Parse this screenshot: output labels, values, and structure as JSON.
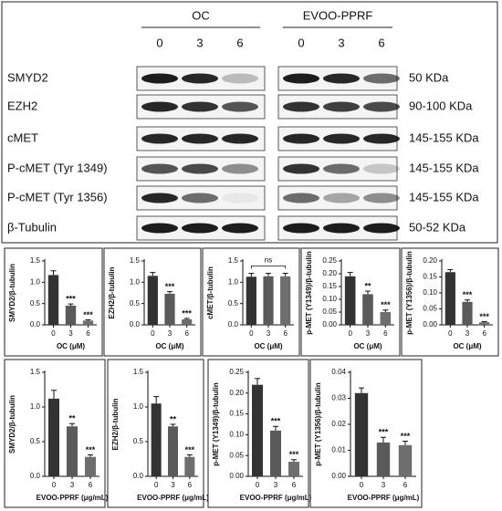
{
  "blot": {
    "groups": [
      {
        "name": "OC",
        "lanes": [
          "0",
          "3",
          "6"
        ]
      },
      {
        "name": "EVOO-PPRF",
        "lanes": [
          "0",
          "3",
          "6"
        ]
      }
    ],
    "rows": [
      {
        "protein": "SMYD2",
        "size": "50 KDa"
      },
      {
        "protein": "EZH2",
        "size": "90-100 KDa"
      },
      {
        "protein": "cMET",
        "size": "145-155 KDa"
      },
      {
        "protein": "P-cMET (Tyr 1349)",
        "size": "145-155 KDa"
      },
      {
        "protein": "P-cMET (Tyr 1356)",
        "size": "145-155 KDa"
      },
      {
        "protein": "β-Tubulin",
        "size": "50-52 KDa"
      }
    ]
  },
  "chart_data": [
    {
      "type": "bar",
      "y_label": "SMYD2/β-tubulin",
      "x_label": "OC (μM)",
      "categories": [
        "0",
        "3",
        "6"
      ],
      "values": [
        1.17,
        0.45,
        0.1
      ],
      "errors": [
        0.1,
        0.04,
        0.02
      ],
      "colors": [
        "#333333",
        "#5a5a5a",
        "#6e6e6e"
      ],
      "significance": [
        null,
        "***",
        "***"
      ],
      "ylim": [
        0,
        1.5
      ],
      "yticks": [
        {
          "value": 0,
          "label": "0.0"
        },
        0.5,
        {
          "value": 1,
          "label": "1.0"
        },
        1.5
      ]
    },
    {
      "type": "bar",
      "y_label": "EZH2/β-tubulin",
      "x_label": "OC (μM)",
      "categories": [
        "0",
        "3",
        "6"
      ],
      "values": [
        1.15,
        0.73,
        0.13
      ],
      "errors": [
        0.08,
        0.05,
        0.02
      ],
      "colors": [
        "#333333",
        "#5a5a5a",
        "#6e6e6e"
      ],
      "significance": [
        null,
        "***",
        "***"
      ],
      "ylim": [
        0,
        1.5
      ],
      "yticks": [
        {
          "value": 0,
          "label": "0.0"
        },
        0.5,
        {
          "value": 1,
          "label": "1.0"
        },
        1.5
      ]
    },
    {
      "type": "bar",
      "y_label": "cMET/β-tubulin",
      "x_label": "OC (μM)",
      "categories": [
        "0",
        "3",
        "6"
      ],
      "values": [
        1.13,
        1.14,
        1.14
      ],
      "errors": [
        0.08,
        0.07,
        0.07
      ],
      "colors": [
        "#333333",
        "#5a5a5a",
        "#6e6e6e"
      ],
      "annotation": "ns",
      "ylim": [
        0,
        1.5
      ],
      "yticks": [
        {
          "value": 0,
          "label": "0.0"
        },
        0.5,
        {
          "value": 1,
          "label": "1.0"
        },
        1.5
      ]
    },
    {
      "type": "bar",
      "y_label": "p-MET (Y1349)/β-tubulin",
      "x_label": "OC (μM)",
      "categories": [
        "0",
        "3",
        "6"
      ],
      "values": [
        0.19,
        0.12,
        0.05
      ],
      "errors": [
        0.015,
        0.012,
        0.008
      ],
      "colors": [
        "#333333",
        "#5a5a5a",
        "#6e6e6e"
      ],
      "significance": [
        null,
        "**",
        "***"
      ],
      "ylim": [
        0,
        0.25
      ],
      "yticks": [
        {
          "value": 0,
          "label": "0.00"
        },
        0.05,
        {
          "value": 0.1,
          "label": "0.10"
        },
        0.15,
        {
          "value": 0.2,
          "label": "0.20"
        },
        0.25
      ]
    },
    {
      "type": "bar",
      "y_label": "p-MET (Y1356)/β-tubulin",
      "x_label": "OC (μM)",
      "categories": [
        "0",
        "3",
        "6"
      ],
      "values": [
        0.165,
        0.072,
        0.008
      ],
      "errors": [
        0.008,
        0.006,
        0.002
      ],
      "colors": [
        "#333333",
        "#5a5a5a",
        "#6e6e6e"
      ],
      "significance": [
        null,
        "***",
        "***"
      ],
      "ylim": [
        0,
        0.2
      ],
      "yticks": [
        {
          "value": 0,
          "label": "0.00"
        },
        0.05,
        {
          "value": 0.1,
          "label": "0.10"
        },
        0.15,
        {
          "value": 0.2,
          "label": "0.20"
        }
      ]
    },
    {
      "type": "bar",
      "y_label": "SMYD2/β-tubulin",
      "x_label": "EVOO-PPRF (μg/mL)",
      "categories": [
        "0",
        "3",
        "6"
      ],
      "values": [
        1.12,
        0.72,
        0.28
      ],
      "errors": [
        0.12,
        0.04,
        0.03
      ],
      "colors": [
        "#333333",
        "#5a5a5a",
        "#6e6e6e"
      ],
      "significance": [
        null,
        "**",
        "***"
      ],
      "ylim": [
        0,
        1.5
      ],
      "yticks": [
        {
          "value": 0,
          "label": "0.0"
        },
        0.5,
        {
          "value": 1,
          "label": "1.0"
        },
        1.5
      ]
    },
    {
      "type": "bar",
      "y_label": "EZH2/β-tubulin",
      "x_label": "EVOO-PPRF (μg/mL)",
      "categories": [
        "0",
        "3",
        "6"
      ],
      "values": [
        1.05,
        0.72,
        0.28
      ],
      "errors": [
        0.1,
        0.03,
        0.03
      ],
      "colors": [
        "#333333",
        "#5a5a5a",
        "#6e6e6e"
      ],
      "significance": [
        null,
        "**",
        "***"
      ],
      "ylim": [
        0,
        1.5
      ],
      "yticks": [
        {
          "value": 0,
          "label": "0.0"
        },
        0.5,
        {
          "value": 1,
          "label": "1.0"
        },
        1.5
      ]
    },
    {
      "type": "bar",
      "y_label": "p-MET (Y1349)/β-tubulin",
      "x_label": "EVOO-PPRF (μg/mL)",
      "categories": [
        "0",
        "3",
        "6"
      ],
      "values": [
        0.22,
        0.11,
        0.035
      ],
      "errors": [
        0.015,
        0.01,
        0.005
      ],
      "colors": [
        "#333333",
        "#5a5a5a",
        "#6e6e6e"
      ],
      "significance": [
        null,
        "***",
        "***"
      ],
      "ylim": [
        0,
        0.25
      ],
      "yticks": [
        {
          "value": 0,
          "label": "0.00"
        },
        0.05,
        {
          "value": 0.1,
          "label": "0.10"
        },
        0.15,
        {
          "value": 0.2,
          "label": "0.20"
        },
        0.25
      ]
    },
    {
      "type": "bar",
      "y_label": "p-MET (Y1356)/β-tubulin",
      "x_label": "EVOO-PPRF (μg/mL)",
      "categories": [
        "0",
        "3",
        "6"
      ],
      "values": [
        0.032,
        0.013,
        0.012
      ],
      "errors": [
        0.002,
        0.002,
        0.0015
      ],
      "colors": [
        "#333333",
        "#5a5a5a",
        "#6e6e6e"
      ],
      "significance": [
        null,
        "***",
        "***"
      ],
      "ylim": [
        0,
        0.04
      ],
      "yticks": [
        {
          "value": 0,
          "label": "0.00"
        },
        0.01,
        0.02,
        0.03,
        0.04
      ]
    }
  ]
}
